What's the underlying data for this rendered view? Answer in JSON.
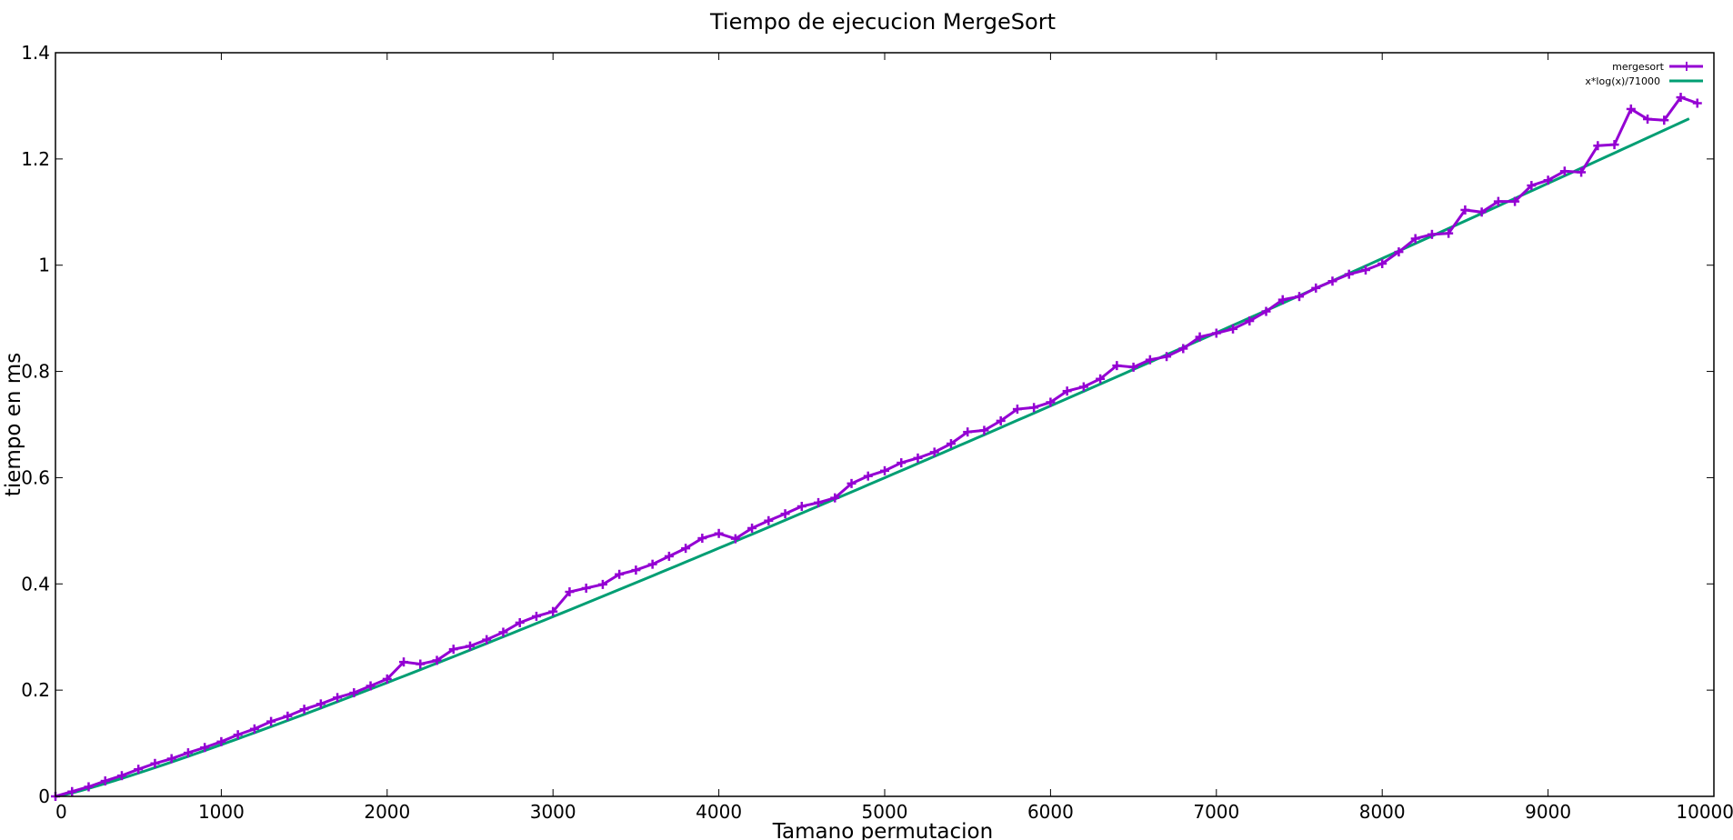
{
  "chart_data": {
    "type": "line",
    "title": "Tiempo de ejecucion MergeSort",
    "xlabel": "Tamano permutacion",
    "ylabel": "tiempo en ms",
    "xlim": [
      0,
      10000
    ],
    "ylim": [
      0,
      1.4
    ],
    "x_ticks": [
      0,
      1000,
      2000,
      3000,
      4000,
      5000,
      6000,
      7000,
      8000,
      9000,
      10000
    ],
    "x_tick_labels": [
      "0",
      "1000",
      "2000",
      "3000",
      "4000",
      "5000",
      "6000",
      "7000",
      "8000",
      "9000",
      "10000"
    ],
    "y_ticks": [
      0,
      0.2,
      0.4,
      0.6,
      0.8,
      1.0,
      1.2,
      1.4
    ],
    "y_tick_labels": [
      "0",
      "0.2",
      "0.4",
      "0.6",
      "0.8",
      "1",
      "1.2",
      "1.4"
    ],
    "grid": false,
    "legend_position": "top-right",
    "series": [
      {
        "name": "mergesort",
        "color": "#9400d3",
        "marker": "plus",
        "x": [
          0,
          100,
          200,
          300,
          400,
          500,
          600,
          700,
          800,
          900,
          1000,
          1100,
          1200,
          1300,
          1400,
          1500,
          1600,
          1700,
          1800,
          1900,
          2000,
          2100,
          2200,
          2300,
          2400,
          2500,
          2600,
          2700,
          2800,
          2900,
          3000,
          3100,
          3200,
          3300,
          3400,
          3500,
          3600,
          3700,
          3800,
          3900,
          4000,
          4100,
          4200,
          4300,
          4400,
          4500,
          4600,
          4700,
          4800,
          4900,
          5000,
          5100,
          5200,
          5300,
          5400,
          5500,
          5600,
          5700,
          5800,
          5900,
          6000,
          6100,
          6200,
          6300,
          6400,
          6500,
          6600,
          6700,
          6800,
          6900,
          7000,
          7100,
          7200,
          7300,
          7400,
          7500,
          7600,
          7700,
          7800,
          7900,
          8000,
          8100,
          8200,
          8300,
          8400,
          8500,
          8600,
          8700,
          8800,
          8900,
          9000,
          9100,
          9200,
          9300,
          9400,
          9500,
          9600,
          9700,
          9800,
          9900
        ],
        "values": [
          0,
          0.009,
          0.018,
          0.029,
          0.039,
          0.051,
          0.062,
          0.071,
          0.082,
          0.092,
          0.103,
          0.116,
          0.127,
          0.141,
          0.151,
          0.164,
          0.174,
          0.186,
          0.195,
          0.208,
          0.221,
          0.253,
          0.249,
          0.256,
          0.277,
          0.283,
          0.295,
          0.309,
          0.327,
          0.339,
          0.348,
          0.385,
          0.392,
          0.399,
          0.418,
          0.426,
          0.437,
          0.452,
          0.467,
          0.486,
          0.495,
          0.485,
          0.505,
          0.519,
          0.532,
          0.546,
          0.553,
          0.562,
          0.589,
          0.603,
          0.613,
          0.628,
          0.637,
          0.648,
          0.664,
          0.686,
          0.689,
          0.707,
          0.729,
          0.732,
          0.742,
          0.763,
          0.771,
          0.786,
          0.811,
          0.808,
          0.822,
          0.828,
          0.843,
          0.865,
          0.872,
          0.88,
          0.895,
          0.913,
          0.935,
          0.941,
          0.957,
          0.97,
          0.983,
          0.991,
          1.003,
          1.025,
          1.05,
          1.058,
          1.06,
          1.104,
          1.1,
          1.12,
          1.12,
          1.15,
          1.16,
          1.177,
          1.175,
          1.225,
          1.227,
          1.294,
          1.275,
          1.273,
          1.316,
          1.305
        ]
      },
      {
        "name": "x*log(x)/71000",
        "color": "#009e73",
        "marker": "none",
        "function": "x*log(x)/71000"
      }
    ]
  }
}
